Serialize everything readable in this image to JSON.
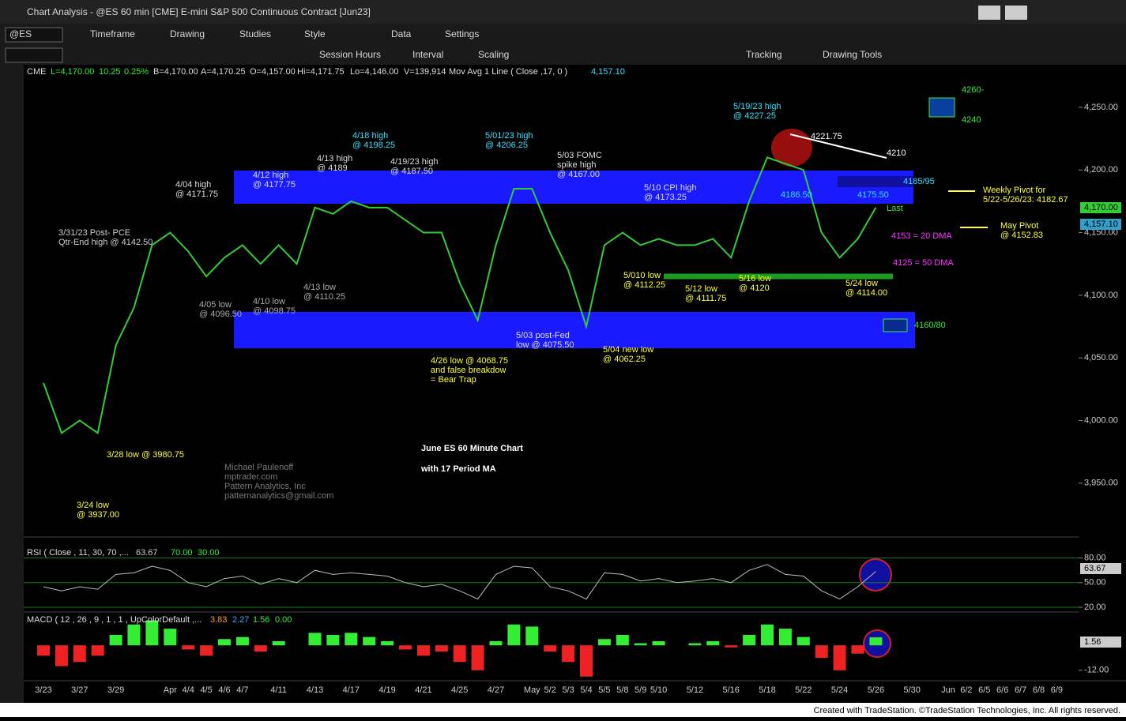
{
  "window": {
    "title": "Chart Analysis - @ES 60 min [CME] E-mini S&P 500 Continuous Contract [Jun23]",
    "symbol": "@ES",
    "toolbar1": [
      "Timeframe",
      "Drawing",
      "Studies",
      "Style",
      "Data",
      "Settings"
    ],
    "toolbar2": [
      "Session Hours",
      "Interval",
      "Scaling",
      "Tracking",
      "Drawing Tools"
    ],
    "footer": "Created with TradeStation. ©TradeStation Technologies, Inc. All rights reserved."
  },
  "chart_data": [
    {
      "type": "line",
      "header": [
        "CME",
        "L=4,170.00",
        "10.25",
        "0.25%",
        "B=4,170.00",
        "A=4,170.25",
        "O=4,157.00",
        "Hi=4,171.75",
        "Lo=4,146.00",
        "V=139,914",
        "Mov Avg 1 Line ( Close ,17, 0 )",
        "4,157.10"
      ],
      "categories": [
        "3/23",
        null,
        "3/27",
        null,
        "3/29",
        null,
        null,
        "Apr",
        "4/4",
        "4/5",
        "4/6",
        "4/7",
        null,
        "4/11",
        null,
        "4/13",
        null,
        "4/17",
        null,
        "4/19",
        null,
        "4/21",
        null,
        "4/25",
        null,
        "4/27",
        null,
        "May",
        "5/2",
        "5/3",
        "5/4",
        "5/5",
        "5/8",
        "5/9",
        "5/10",
        null,
        "5/12",
        null,
        "5/16",
        null,
        "5/18",
        null,
        "5/22",
        null,
        "5/24",
        null,
        "5/26",
        null,
        "5/30",
        null,
        "Jun",
        "6/2",
        "6/5",
        "6/6",
        "6/7",
        "6/8",
        "6/9"
      ],
      "series": [
        {
          "name": "@ES",
          "color": "#33cc33",
          "values": [
            4030,
            3990,
            4000,
            3990,
            4060,
            4090,
            4140,
            4150,
            4135,
            4115,
            4130,
            4140,
            4125,
            4140,
            4125,
            4170,
            4165,
            4175,
            4170,
            4170,
            4160,
            4150,
            4150,
            4110,
            4080,
            4140,
            4185,
            4185,
            4150,
            4120,
            4075,
            4140,
            4150,
            4140,
            4145,
            4140,
            4140,
            4145,
            4130,
            4175,
            4210,
            4205,
            4200,
            4150,
            4130,
            4145,
            4170,
            null,
            null,
            null,
            null,
            null,
            null,
            null,
            null,
            null,
            null
          ]
        }
      ],
      "ylim": [
        3907,
        4284
      ],
      "yticks": [
        {
          "value": 4250,
          "label": "4,250.00"
        },
        {
          "value": 4200,
          "label": "4,200.00"
        },
        {
          "value": 4150,
          "label": "4,150.00"
        },
        {
          "value": 4100,
          "label": "4,100.00"
        },
        {
          "value": 4050,
          "label": "4,050.00"
        },
        {
          "value": 4000,
          "label": "4,000.00"
        },
        {
          "value": 3950,
          "label": "3,950.00"
        }
      ],
      "last_label": "4,170.00",
      "annotations": [
        {
          "lines": [
            "5/19/23 high",
            "@ 4227.25"
          ],
          "color": "#33e0ff"
        },
        {
          "lines": [
            "4/18 high",
            "@ 4198.25"
          ],
          "color": "#33e0ff"
        },
        {
          "lines": [
            "5/01/23 high",
            "@ 4206.25"
          ],
          "color": "#33e0ff"
        },
        {
          "lines": [
            "4186.50"
          ],
          "color": "#33e0ff"
        },
        {
          "lines": [
            "4175.50"
          ],
          "color": "#33e0ff"
        },
        {
          "lines": [
            "4185/95"
          ],
          "color": "#33e0ff"
        },
        {
          "lines": [
            "4221.75"
          ],
          "color": "#ffffff"
        },
        {
          "lines": [
            "4210"
          ],
          "color": "#ffffff"
        },
        {
          "lines": [
            "4/12 high",
            "@ 4177.75"
          ],
          "color": "#dddddd"
        },
        {
          "lines": [
            "4/13 high",
            "@ 4189"
          ],
          "color": "#dddddd"
        },
        {
          "lines": [
            "4/19/23 high",
            "@ 4187.50"
          ],
          "color": "#dddddd"
        },
        {
          "lines": [
            "5/03 FOMC",
            "spike high",
            "@ 4167.00"
          ],
          "color": "#dddddd"
        },
        {
          "lines": [
            "5/10 CPI high",
            "@ 4173.25"
          ],
          "color": "#dddddd"
        },
        {
          "lines": [
            "4/04 high",
            "@ 4171.75"
          ],
          "color": "#dddddd"
        },
        {
          "lines": [
            "3/31/23 Post- PCE",
            "Qtr-End high @ 4142.50"
          ],
          "color": "#cccccc"
        },
        {
          "lines": [
            "4/05 low",
            "@ 4096.50"
          ],
          "color": "#aaaaaa"
        },
        {
          "lines": [
            "4/10 low",
            "@ 4098.75"
          ],
          "color": "#aaaaaa"
        },
        {
          "lines": [
            "4/13 low",
            "@ 4110.25"
          ],
          "color": "#aaaaaa"
        },
        {
          "lines": [
            "5/03 post-Fed",
            "low @ 4075.50"
          ],
          "color": "#dddddd"
        },
        {
          "lines": [
            "5/010 low",
            "@ 4112.25"
          ],
          "color": "#ffff33"
        },
        {
          "lines": [
            "5/12 low",
            "@ 4111.75"
          ],
          "color": "#ffff33"
        },
        {
          "lines": [
            "5/16 low",
            "@ 4120"
          ],
          "color": "#ffff33"
        },
        {
          "lines": [
            "5/24 low",
            "@ 4114.00"
          ],
          "color": "#ffff33"
        },
        {
          "lines": [
            "4/26 low @ 4068.75",
            "and false breakdow",
            "= Bear Trap"
          ],
          "color": "#ffff33"
        },
        {
          "lines": [
            "5/04 new low",
            "@ 4062.25"
          ],
          "color": "#ffff33"
        },
        {
          "lines": [
            "3/28 low @ 3980.75"
          ],
          "color": "#ffff33"
        },
        {
          "lines": [
            "3/24 low",
            "@ 3937.00"
          ],
          "color": "#ffff33"
        },
        {
          "lines": [
            "Weekly Pivot for",
            "5/22-5/26/23: 4182.67"
          ],
          "color": "#ffff33"
        },
        {
          "lines": [
            "May Pivot",
            "@ 4152.83"
          ],
          "color": "#ffff33"
        },
        {
          "lines": [
            "4260-"
          ],
          "color": "#33ee33"
        },
        {
          "lines": [
            "4240"
          ],
          "color": "#33ee33"
        },
        {
          "lines": [
            "4160/80"
          ],
          "color": "#33ee33"
        },
        {
          "lines": [
            "Last"
          ],
          "color": "#33ee33"
        },
        {
          "lines": [
            "4153 = 20 DMA"
          ],
          "color": "#ff33ff"
        },
        {
          "lines": [
            "4125 = 50 DMA"
          ],
          "color": "#ff33ff"
        },
        {
          "lines": [
            "June ES 60 Minute Chart",
            "with 17 Period MA"
          ],
          "color": "#ffffff"
        },
        {
          "lines": [
            "Michael Paulenoff",
            "mptrader.com",
            "Pattern Analytics, Inc",
            "patternanalytics@gmail.com"
          ],
          "color": "#777777"
        }
      ]
    },
    {
      "type": "line",
      "title": "RSI ( Close , 11, 30, 70 ,...",
      "legend_values": [
        "63.67",
        "70.00",
        "30.00"
      ],
      "series": [
        {
          "name": "RSI",
          "color": "#bbbbbb",
          "values": [
            45,
            40,
            45,
            42,
            60,
            62,
            70,
            65,
            50,
            45,
            55,
            58,
            48,
            55,
            50,
            65,
            60,
            62,
            60,
            58,
            50,
            45,
            48,
            40,
            30,
            60,
            70,
            68,
            45,
            40,
            30,
            62,
            60,
            52,
            55,
            50,
            52,
            55,
            50,
            65,
            72,
            60,
            58,
            40,
            30,
            45,
            63.67,
            null,
            null,
            null,
            null,
            null,
            null,
            null,
            null,
            null,
            null
          ]
        }
      ],
      "ylim": [
        19,
        96
      ],
      "yticks": [
        {
          "value": 80,
          "label": "80.00"
        },
        {
          "value": 50,
          "label": "50.00"
        },
        {
          "value": 20,
          "label": "20.00"
        }
      ]
    },
    {
      "type": "bar",
      "title": "MACD ( 12 , 26 , 9 , 1 , 1 , UpColorDefault ,...",
      "legend_values": [
        "3.83",
        "2.27",
        "1.56",
        "0.00"
      ],
      "series": [
        {
          "name": "MACD",
          "color": "#33ee33",
          "values": [
            -5,
            -10,
            -8,
            -5,
            5,
            10,
            12,
            8,
            -2,
            -5,
            3,
            4,
            -3,
            2,
            0,
            6,
            5,
            6,
            4,
            2,
            -2,
            -5,
            -3,
            -8,
            -12,
            2,
            10,
            9,
            -3,
            -8,
            -15,
            3,
            5,
            1,
            2,
            0,
            1,
            2,
            -1,
            5,
            10,
            8,
            4,
            -6,
            -12,
            -4,
            3.83,
            null,
            null,
            null,
            null,
            null,
            null,
            null,
            null,
            null,
            null
          ]
        }
      ],
      "ylim": [
        -17,
        16
      ],
      "yticks": [
        {
          "value": -12,
          "label": "-12.00"
        }
      ]
    }
  ]
}
